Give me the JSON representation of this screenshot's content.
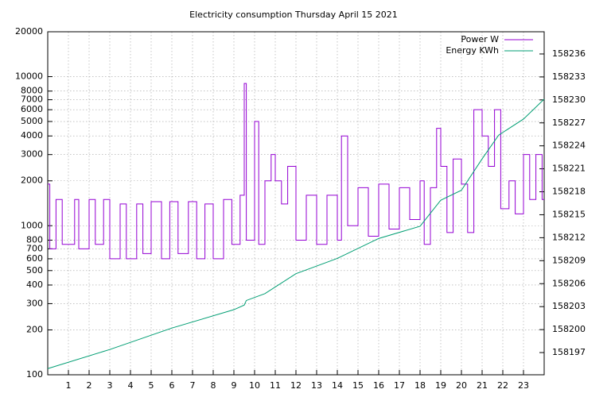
{
  "chart_data": {
    "type": "line",
    "title": "Electricity consumption Thursday April 15 2021",
    "ylog": true,
    "grid": true,
    "legend": "top-right",
    "steps": true,
    "xlim": [
      0,
      24
    ],
    "xticks": [
      1,
      2,
      3,
      4,
      5,
      6,
      7,
      8,
      9,
      10,
      11,
      12,
      13,
      14,
      15,
      16,
      17,
      18,
      19,
      20,
      21,
      22,
      23
    ],
    "ylim": [
      100,
      20000
    ],
    "yticks": [
      100,
      200,
      300,
      400,
      500,
      600,
      700,
      800,
      1000,
      2000,
      3000,
      4000,
      5000,
      6000,
      7000,
      8000,
      10000,
      20000
    ],
    "y2lim": [
      158194.1,
      158238.9
    ],
    "y2ticks": [
      158197,
      158200,
      158203,
      158206,
      158209,
      158212,
      158215,
      158218,
      158221,
      158224,
      158227,
      158230,
      158233,
      158236
    ],
    "series": [
      {
        "name": "Power W",
        "color": "#9400d3",
        "x": [
          0,
          0.1,
          0.4,
          0.7,
          1.3,
          1.5,
          2,
          2.3,
          2.7,
          3,
          3.5,
          3.8,
          4.3,
          4.6,
          5,
          5.5,
          5.9,
          6.3,
          6.8,
          7.2,
          7.6,
          8,
          8.5,
          8.9,
          9.3,
          9.5,
          9.6,
          10,
          10.2,
          10.5,
          10.8,
          11,
          11.3,
          11.6,
          12,
          12.5,
          13,
          13.5,
          14,
          14.2,
          14.5,
          15,
          15.5,
          16,
          16.5,
          17,
          17.5,
          18,
          18.2,
          18.5,
          18.8,
          19,
          19.3,
          19.6,
          20,
          20.3,
          20.6,
          21,
          21.3,
          21.6,
          21.9,
          22.3,
          22.6,
          23,
          23.3,
          23.6,
          23.9
        ],
        "values": [
          1900,
          700,
          1500,
          750,
          1500,
          700,
          1500,
          750,
          1500,
          600,
          1400,
          600,
          1400,
          650,
          1450,
          600,
          1450,
          650,
          1450,
          600,
          1400,
          600,
          1500,
          750,
          1600,
          9000,
          800,
          5000,
          750,
          2000,
          3000,
          2000,
          1400,
          2500,
          800,
          1600,
          750,
          1600,
          800,
          4000,
          1000,
          1800,
          850,
          1900,
          950,
          1800,
          1100,
          2000,
          750,
          1800,
          4500,
          2500,
          900,
          2800,
          1900,
          900,
          6000,
          4000,
          2500,
          6000,
          1300,
          2000,
          1200,
          3000,
          1500,
          3000,
          1500
        ]
      },
      {
        "name": "Energy KWh",
        "color": "#009e73",
        "axis": "y2",
        "x": [
          0,
          3,
          6,
          9,
          9.5,
          9.6,
          10.5,
          12,
          14,
          16,
          18,
          19,
          20,
          21,
          21.8,
          23,
          24
        ],
        "values": [
          158194.9,
          158197.4,
          158200.2,
          158202.6,
          158203.2,
          158203.8,
          158204.7,
          158207.3,
          158209.3,
          158211.9,
          158213.5,
          158216.9,
          158218.2,
          158222.3,
          158225.4,
          158227.5,
          158230.1
        ]
      }
    ]
  }
}
